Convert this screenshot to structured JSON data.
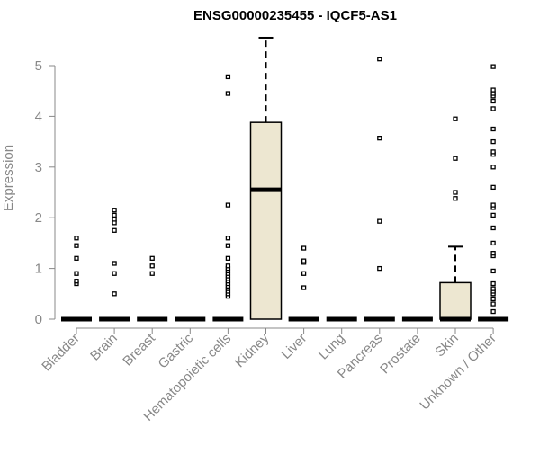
{
  "chart_data": {
    "type": "boxplot",
    "title": "ENSG00000235455 - IQCF5-AS1",
    "xlabel": "",
    "ylabel": "Expression",
    "ylim": [
      0,
      5.7
    ],
    "yticks": [
      0,
      1,
      2,
      3,
      4,
      5
    ],
    "grid": false,
    "legend": "none",
    "colors": {
      "box_fill": "#ede7d1",
      "stroke": "#000000",
      "axis": "#888888",
      "title": "#000000"
    },
    "categories": [
      "Bladder",
      "Brain",
      "Breast",
      "Gastric",
      "Hematopoietic cells",
      "Kidney",
      "Liver",
      "Lung",
      "Pancreas",
      "Prostate",
      "Skin",
      "Unknown / Other"
    ],
    "boxes": [
      {
        "q1": 0,
        "median": 0,
        "q3": 0,
        "whisker_low": 0,
        "whisker_high": 0
      },
      {
        "q1": 0,
        "median": 0,
        "q3": 0,
        "whisker_low": 0,
        "whisker_high": 0
      },
      {
        "q1": 0,
        "median": 0,
        "q3": 0,
        "whisker_low": 0,
        "whisker_high": 0
      },
      {
        "q1": 0,
        "median": 0,
        "q3": 0,
        "whisker_low": 0,
        "whisker_high": 0
      },
      {
        "q1": 0,
        "median": 0,
        "q3": 0,
        "whisker_low": 0,
        "whisker_high": 0
      },
      {
        "q1": 0,
        "median": 2.55,
        "q3": 3.88,
        "whisker_low": 0,
        "whisker_high": 5.55
      },
      {
        "q1": 0,
        "median": 0,
        "q3": 0,
        "whisker_low": 0,
        "whisker_high": 0
      },
      {
        "q1": 0,
        "median": 0,
        "q3": 0,
        "whisker_low": 0,
        "whisker_high": 0
      },
      {
        "q1": 0,
        "median": 0,
        "q3": 0,
        "whisker_low": 0,
        "whisker_high": 0
      },
      {
        "q1": 0,
        "median": 0,
        "q3": 0,
        "whisker_low": 0,
        "whisker_high": 0
      },
      {
        "q1": 0,
        "median": 0,
        "q3": 0.72,
        "whisker_low": 0,
        "whisker_high": 1.43
      },
      {
        "q1": 0,
        "median": 0,
        "q3": 0,
        "whisker_low": 0,
        "whisker_high": 0
      }
    ],
    "outliers": [
      [
        0.7,
        0.75,
        0.9,
        1.2,
        1.45,
        1.6
      ],
      [
        0.5,
        0.9,
        1.1,
        1.75,
        1.9,
        1.97,
        2.05,
        2.15
      ],
      [
        0.9,
        1.05,
        1.2
      ],
      [],
      [
        0.45,
        0.5,
        0.55,
        0.6,
        0.65,
        0.7,
        0.75,
        0.8,
        0.85,
        0.9,
        0.95,
        1.0,
        1.05,
        1.2,
        1.45,
        1.6,
        2.25,
        4.45,
        4.78
      ],
      [],
      [
        0.62,
        0.9,
        1.12,
        1.15,
        1.4
      ],
      [],
      [
        1.0,
        1.93,
        3.57,
        5.13
      ],
      [],
      [
        2.38,
        2.5,
        3.17,
        3.95
      ],
      [
        0.15,
        0.3,
        0.4,
        0.5,
        0.55,
        0.6,
        0.7,
        0.95,
        1.25,
        1.3,
        1.5,
        1.8,
        2.05,
        2.2,
        2.25,
        2.6,
        3.0,
        3.25,
        3.3,
        3.5,
        3.75,
        4.15,
        4.3,
        4.4,
        4.45,
        4.52,
        4.98
      ]
    ]
  }
}
